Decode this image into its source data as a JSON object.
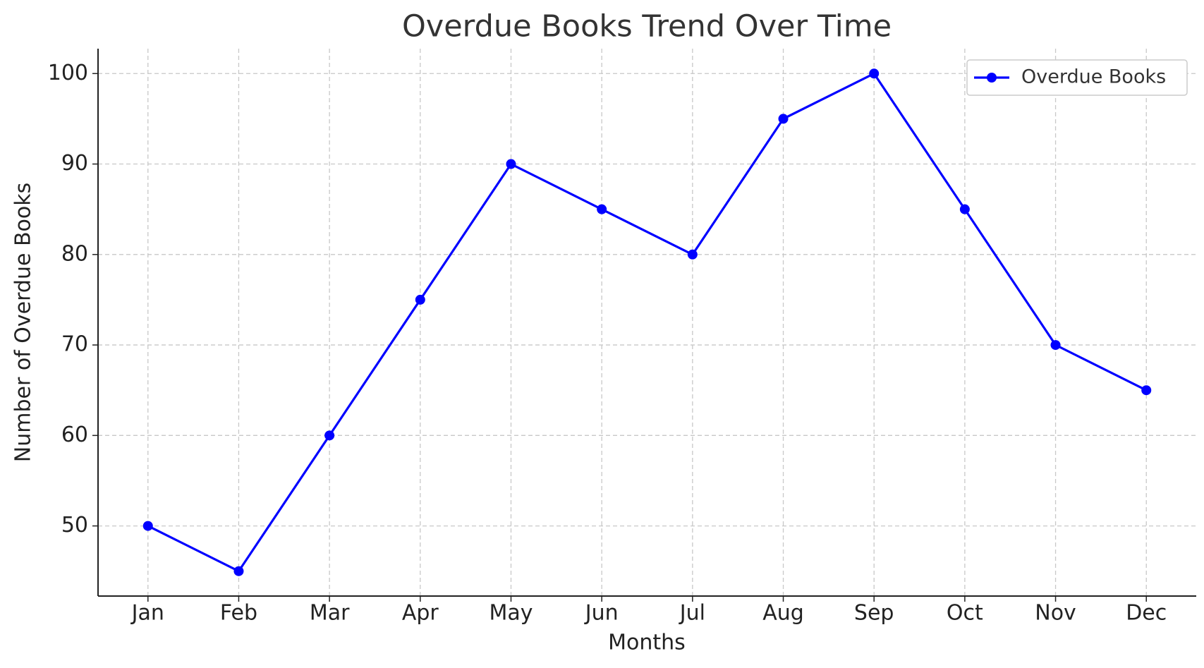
{
  "chart_data": {
    "type": "line",
    "title": "Overdue Books Trend Over Time",
    "x_label": "Months",
    "y_label": "Number of Overdue Books",
    "categories": [
      "Jan",
      "Feb",
      "Mar",
      "Apr",
      "May",
      "Jun",
      "Jul",
      "Aug",
      "Sep",
      "Oct",
      "Nov",
      "Dec"
    ],
    "series": [
      {
        "name": "Overdue Books",
        "color": "#0000ff",
        "values": [
          50,
          45,
          60,
          75,
          90,
          85,
          80,
          95,
          100,
          85,
          70,
          65
        ]
      }
    ],
    "ylim": [
      42.25,
      102.75
    ],
    "yticks": [
      50,
      60,
      70,
      80,
      90,
      100
    ],
    "grid": true,
    "legend": "upper right"
  }
}
